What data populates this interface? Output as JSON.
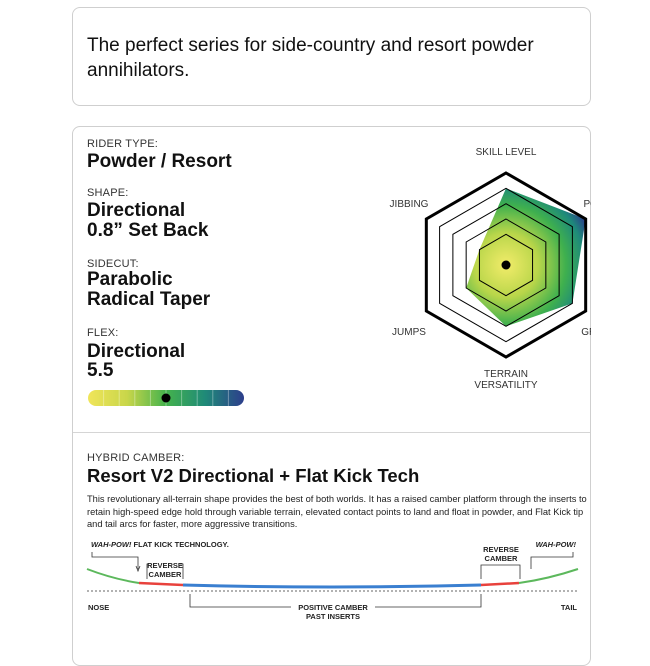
{
  "intro": {
    "text": "The perfect series for side-country and resort powder annihilators."
  },
  "specs": {
    "rider_type": {
      "label": "RIDER TYPE:",
      "value": "Powder / Resort"
    },
    "shape": {
      "label": "SHAPE:",
      "line1": "Directional",
      "line2": "0.8” Set Back"
    },
    "sidecut": {
      "label": "SIDECUT:",
      "line1": "Parabolic",
      "line2": "Radical Taper"
    },
    "flex": {
      "label": "FLEX:",
      "line1": "Directional",
      "line2": "5.5",
      "value": 5.5,
      "scale_max": 10,
      "segments": 10,
      "colors": [
        "#f0e55a",
        "#c9d64a",
        "#44b24c",
        "#1f8a78",
        "#2d3e8c"
      ]
    }
  },
  "radar": {
    "max": 6,
    "axes": [
      {
        "label": "SKILL LEVEL",
        "value": 5
      },
      {
        "label": "POWDER",
        "value": 6
      },
      {
        "label": "GROOMERS",
        "value": 5
      },
      {
        "label": "TERRAIN",
        "label2": "VERSATILITY",
        "value": 4
      },
      {
        "label": "JUMPS",
        "value": 3
      },
      {
        "label": "JIBBING",
        "value": 2
      }
    ]
  },
  "camber": {
    "label": "HYBRID CAMBER:",
    "title": "Resort V2 Directional + Flat Kick Tech",
    "description": "This revolutionary all-terrain shape provides the best of both worlds. It has a raised camber platform through the inserts to retain high-speed edge hold through variable terrain, elevated contact points to land and float in powder, and Flat Kick tip and tail arcs for faster, more aggressive transitions.",
    "diagram": {
      "wah_pow_left": "WAH-POW!",
      "flat_kick": " FLAT KICK TECHNOLOGY.",
      "wah_pow_right": "WAH-POW!",
      "reverse1": "REVERSE",
      "camber1": "CAMBER",
      "reverse2": "REVERSE",
      "camber2": "CAMBER",
      "nose": "NOSE",
      "tail": "TAIL",
      "positive1": "POSITIVE CAMBER",
      "positive2": "PAST INSERTS",
      "colors": {
        "kick": "#5cb85c",
        "reverse": "#e8413c",
        "camber": "#3a7fd0"
      }
    }
  }
}
